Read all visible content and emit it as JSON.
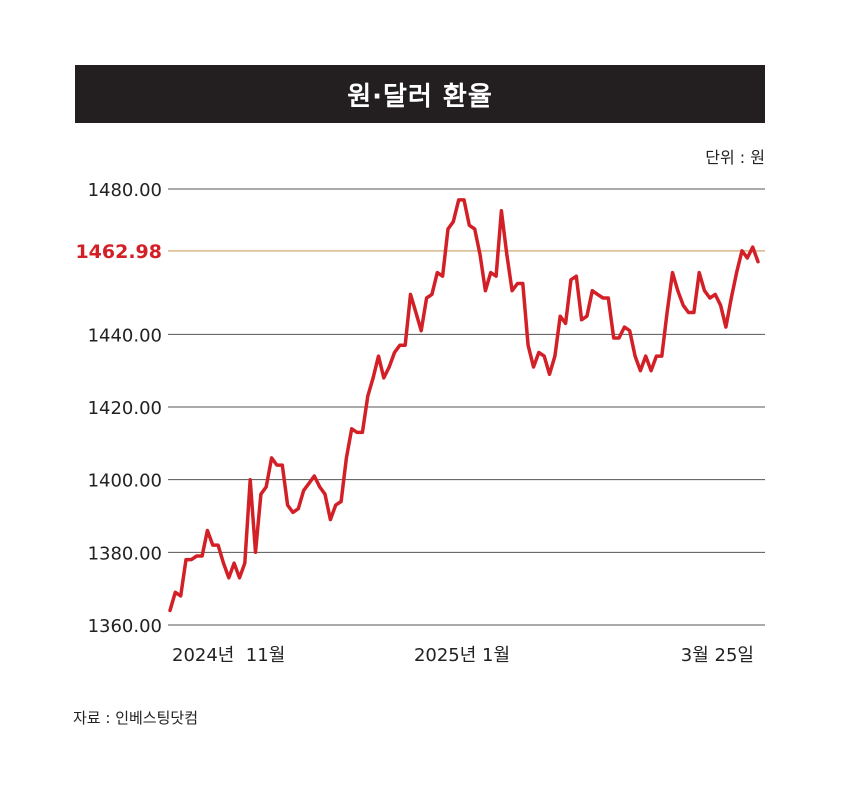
{
  "chart_data": {
    "type": "line",
    "title": "원·달러 환율",
    "unit_label": "단위 : 원",
    "source": "자료 : 인베스팅닷컴",
    "ylim": [
      1360,
      1480
    ],
    "y_ticks": [
      "1360.00",
      "1380.00",
      "1400.00",
      "1420.00",
      "1440.00",
      "1480.00"
    ],
    "reference": {
      "value": 1462.98,
      "label": "1462.98",
      "color": "#d8b78a",
      "label_color": "#d32027"
    },
    "x_labels": [
      "2024년  11월",
      "2025년 1월",
      "3월 25일"
    ],
    "series": [
      {
        "color": "#d32027",
        "values": [
          1364,
          1369,
          1368,
          1378,
          1378,
          1379,
          1379,
          1386,
          1382,
          1382,
          1377,
          1373,
          1377,
          1373,
          1377,
          1400,
          1380,
          1396,
          1398,
          1406,
          1404,
          1404,
          1393,
          1391,
          1392,
          1397,
          1399,
          1401,
          1398,
          1396,
          1389,
          1393,
          1394,
          1406,
          1414,
          1413,
          1413,
          1423,
          1428,
          1434,
          1428,
          1431,
          1435,
          1437,
          1437,
          1451,
          1446,
          1441,
          1450,
          1451,
          1457,
          1456,
          1469,
          1471,
          1477,
          1477,
          1470,
          1469,
          1462,
          1452,
          1457,
          1456,
          1474,
          1462,
          1452,
          1454,
          1454,
          1437,
          1431,
          1435,
          1434,
          1429,
          1434,
          1445,
          1443,
          1455,
          1456,
          1444,
          1445,
          1452,
          1451,
          1450,
          1450,
          1439,
          1439,
          1442,
          1441,
          1434,
          1430,
          1434,
          1430,
          1434,
          1434,
          1446,
          1457,
          1452,
          1448,
          1446,
          1446,
          1457,
          1452,
          1450,
          1451,
          1448,
          1442,
          1450,
          1457,
          1463,
          1461,
          1464,
          1460
        ]
      }
    ]
  }
}
